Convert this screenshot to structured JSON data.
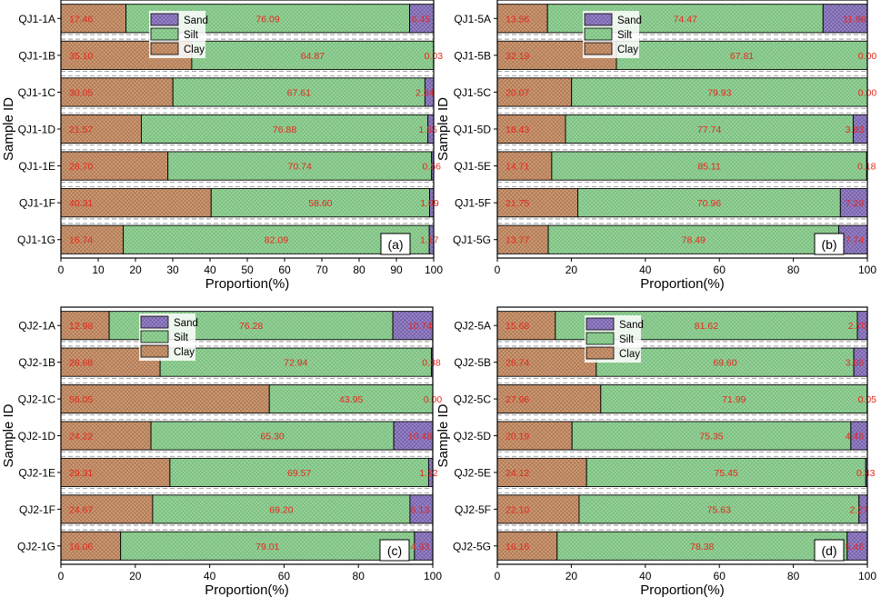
{
  "colors": {
    "clay": "#cf9a73",
    "silt": "#97d39a",
    "sand": "#9a84c8",
    "labels": "#e8261c",
    "axis": "#000000",
    "separator": "#888888"
  },
  "chart_data": [
    {
      "type": "bar",
      "orientation": "horizontal",
      "stacked": true,
      "panel_label": "(a)",
      "xlabel": "Proportion(%)",
      "ylabel": "Sample ID",
      "xlim": [
        0,
        100
      ],
      "xticks": [
        0,
        10,
        20,
        30,
        40,
        50,
        60,
        70,
        80,
        90,
        100
      ],
      "legend": [
        "Sand",
        "Silt",
        "Clay"
      ],
      "categories": [
        "QJ1-1A",
        "QJ1-1B",
        "QJ1-1C",
        "QJ1-1D",
        "QJ1-1E",
        "QJ1-1F",
        "QJ1-1G"
      ],
      "series": [
        {
          "name": "Clay",
          "values": [
            17.46,
            35.1,
            30.05,
            21.57,
            28.7,
            40.31,
            16.74
          ],
          "labels": [
            "17.46",
            "35.10",
            "30.05",
            "21.57",
            "28.70",
            "40.31",
            "16.74"
          ]
        },
        {
          "name": "Silt",
          "values": [
            76.09,
            64.87,
            67.61,
            76.88,
            70.74,
            58.6,
            82.09
          ],
          "labels": [
            "76.09",
            "64.87",
            "67.61",
            "76.88",
            "70.74",
            "58.60",
            "82.09"
          ]
        },
        {
          "name": "Sand",
          "values": [
            6.45,
            0.03,
            2.34,
            1.55,
            0.56,
            1.09,
            1.17
          ],
          "labels": [
            "6.45",
            "0.03",
            "2.34",
            "1.55",
            "0.56",
            "1.09",
            "1.17"
          ]
        }
      ]
    },
    {
      "type": "bar",
      "orientation": "horizontal",
      "stacked": true,
      "panel_label": "(b)",
      "xlabel": "Proportion(%)",
      "ylabel": "Sample ID",
      "xlim": [
        0,
        100
      ],
      "xticks": [
        0,
        20,
        40,
        60,
        80,
        100
      ],
      "legend": [
        "Sand",
        "Silt",
        "Clay"
      ],
      "categories": [
        "QJ1-5A",
        "QJ1-5B",
        "QJ1-5C",
        "QJ1-5D",
        "QJ1-5E",
        "QJ1-5F",
        "QJ1-5G"
      ],
      "series": [
        {
          "name": "Clay",
          "values": [
            13.56,
            32.19,
            20.07,
            18.43,
            14.71,
            21.75,
            13.77
          ],
          "labels": [
            "13.56",
            "32.19",
            "20.07",
            "18.43",
            "14.71",
            "21.75",
            "13.77"
          ]
        },
        {
          "name": "Silt",
          "values": [
            74.47,
            67.81,
            79.93,
            77.74,
            85.11,
            70.96,
            78.49
          ],
          "labels": [
            "74.47",
            "67.81",
            "79.93",
            "77.74",
            "85.11",
            "70.96",
            "78.49"
          ]
        },
        {
          "name": "Sand",
          "values": [
            11.96,
            0.0,
            0.0,
            3.83,
            0.18,
            7.29,
            7.74
          ],
          "labels": [
            "11.96",
            "0.00",
            "0.00",
            "3.83",
            "0.18",
            "7.29",
            "7.74"
          ]
        }
      ]
    },
    {
      "type": "bar",
      "orientation": "horizontal",
      "stacked": true,
      "panel_label": "(c)",
      "xlabel": "Proportion(%)",
      "ylabel": "Sample ID",
      "xlim": [
        0,
        100
      ],
      "xticks": [
        0,
        20,
        40,
        60,
        80,
        100
      ],
      "legend": [
        "Sand",
        "Silt",
        "Clay"
      ],
      "categories": [
        "QJ2-1A",
        "QJ2-1B",
        "QJ2-1C",
        "QJ2-1D",
        "QJ2-1E",
        "QJ2-1F",
        "QJ2-1G"
      ],
      "series": [
        {
          "name": "Clay",
          "values": [
            12.98,
            26.68,
            56.05,
            24.22,
            29.31,
            24.67,
            16.06
          ],
          "labels": [
            "12.98",
            "26.68",
            "56.05",
            "24.22",
            "29.31",
            "24.67",
            "16.06"
          ]
        },
        {
          "name": "Silt",
          "values": [
            76.28,
            72.94,
            43.95,
            65.3,
            69.57,
            69.2,
            79.01
          ],
          "labels": [
            "76.28",
            "72.94",
            "43.95",
            "65.30",
            "69.57",
            "69.20",
            "79.01"
          ]
        },
        {
          "name": "Sand",
          "values": [
            10.74,
            0.38,
            0.0,
            10.48,
            1.12,
            6.13,
            4.93
          ],
          "labels": [
            "10.74",
            "0.38",
            "0.00",
            "10.48",
            "1.12",
            "6.13",
            "4.93"
          ]
        }
      ]
    },
    {
      "type": "bar",
      "orientation": "horizontal",
      "stacked": true,
      "panel_label": "(d)",
      "xlabel": "Proportion(%)",
      "ylabel": "Sample ID",
      "xlim": [
        0,
        100
      ],
      "xticks": [
        0,
        20,
        40,
        60,
        80,
        100
      ],
      "legend": [
        "Sand",
        "Silt",
        "Clay"
      ],
      "categories": [
        "QJ2-5A",
        "QJ2-5B",
        "QJ2-5C",
        "QJ2-5D",
        "QJ2-5E",
        "QJ2-5F",
        "QJ2-5G"
      ],
      "series": [
        {
          "name": "Clay",
          "values": [
            15.68,
            26.74,
            27.96,
            20.19,
            24.12,
            22.1,
            16.16
          ],
          "labels": [
            "15.68",
            "26.74",
            "27.96",
            "20.19",
            "24.12",
            "22.10",
            "16.16"
          ]
        },
        {
          "name": "Silt",
          "values": [
            81.62,
            69.6,
            71.99,
            75.35,
            75.45,
            75.63,
            78.38
          ],
          "labels": [
            "81.62",
            "69.60",
            "71.99",
            "75.35",
            "75.45",
            "75.63",
            "78.38"
          ]
        },
        {
          "name": "Sand",
          "values": [
            2.7,
            3.66,
            0.05,
            4.46,
            0.43,
            2.27,
            5.46
          ],
          "labels": [
            "2.70",
            "3.66",
            "0.05",
            "4.46",
            "0.43",
            "2.27",
            "5.46"
          ]
        }
      ]
    }
  ]
}
